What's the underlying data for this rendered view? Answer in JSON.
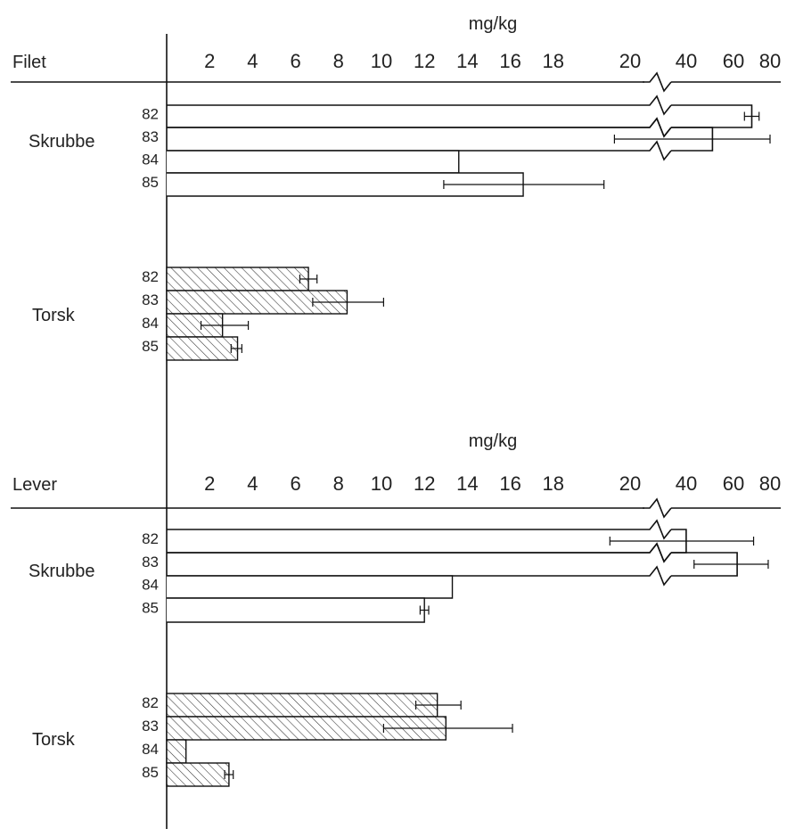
{
  "chart_data": [
    {
      "type": "bar",
      "orientation": "horizontal",
      "panel_label": "Filet",
      "unit": "mg/kg",
      "x_ticks": [
        "2",
        "4",
        "6",
        "8",
        "10",
        "12",
        "14",
        "16",
        "18",
        "20",
        "40",
        "60",
        "80"
      ],
      "axis_break": "between 20 and 40",
      "groups": [
        {
          "name": "Skrubbe",
          "hatched": false,
          "bars": [
            {
              "year": "82",
              "value": 70,
              "err_low": 66,
              "err_high": 74
            },
            {
              "year": "83",
              "value": 52,
              "err_low": 24,
              "err_high": 80
            },
            {
              "year": "84",
              "value": 13.6
            },
            {
              "year": "85",
              "value": 16.6,
              "err_low": 12.9,
              "err_high": 21.7
            }
          ]
        },
        {
          "name": "Torsk",
          "hatched": true,
          "bars": [
            {
              "year": "82",
              "value": 6.6,
              "err_low": 6.2,
              "err_high": 7.0
            },
            {
              "year": "83",
              "value": 8.4,
              "err_low": 6.8,
              "err_high": 10.1
            },
            {
              "year": "84",
              "value": 2.6,
              "err_low": 1.6,
              "err_high": 3.8
            },
            {
              "year": "85",
              "value": 3.3,
              "err_low": 3.0,
              "err_high": 3.5
            }
          ]
        }
      ]
    },
    {
      "type": "bar",
      "orientation": "horizontal",
      "panel_label": "Lever",
      "unit": "mg/kg",
      "x_ticks": [
        "2",
        "4",
        "6",
        "8",
        "10",
        "12",
        "14",
        "16",
        "18",
        "20",
        "40",
        "60",
        "80"
      ],
      "axis_break": "between 20 and 40",
      "groups": [
        {
          "name": "Skrubbe",
          "hatched": false,
          "bars": [
            {
              "year": "82",
              "value": 42,
              "err_low": 23,
              "err_high": 71
            },
            {
              "year": "83",
              "value": 62,
              "err_low": 45,
              "err_high": 79
            },
            {
              "year": "84",
              "value": 13.3
            },
            {
              "year": "85",
              "value": 12.0,
              "err_low": 11.8,
              "err_high": 12.2
            }
          ]
        },
        {
          "name": "Torsk",
          "hatched": true,
          "bars": [
            {
              "year": "82",
              "value": 12.6,
              "err_low": 11.6,
              "err_high": 13.7
            },
            {
              "year": "83",
              "value": 13.0,
              "err_low": 10.1,
              "err_high": 16.1
            },
            {
              "year": "84",
              "value": 0.9
            },
            {
              "year": "85",
              "value": 2.9,
              "err_low": 2.7,
              "err_high": 3.1
            }
          ]
        }
      ]
    }
  ]
}
